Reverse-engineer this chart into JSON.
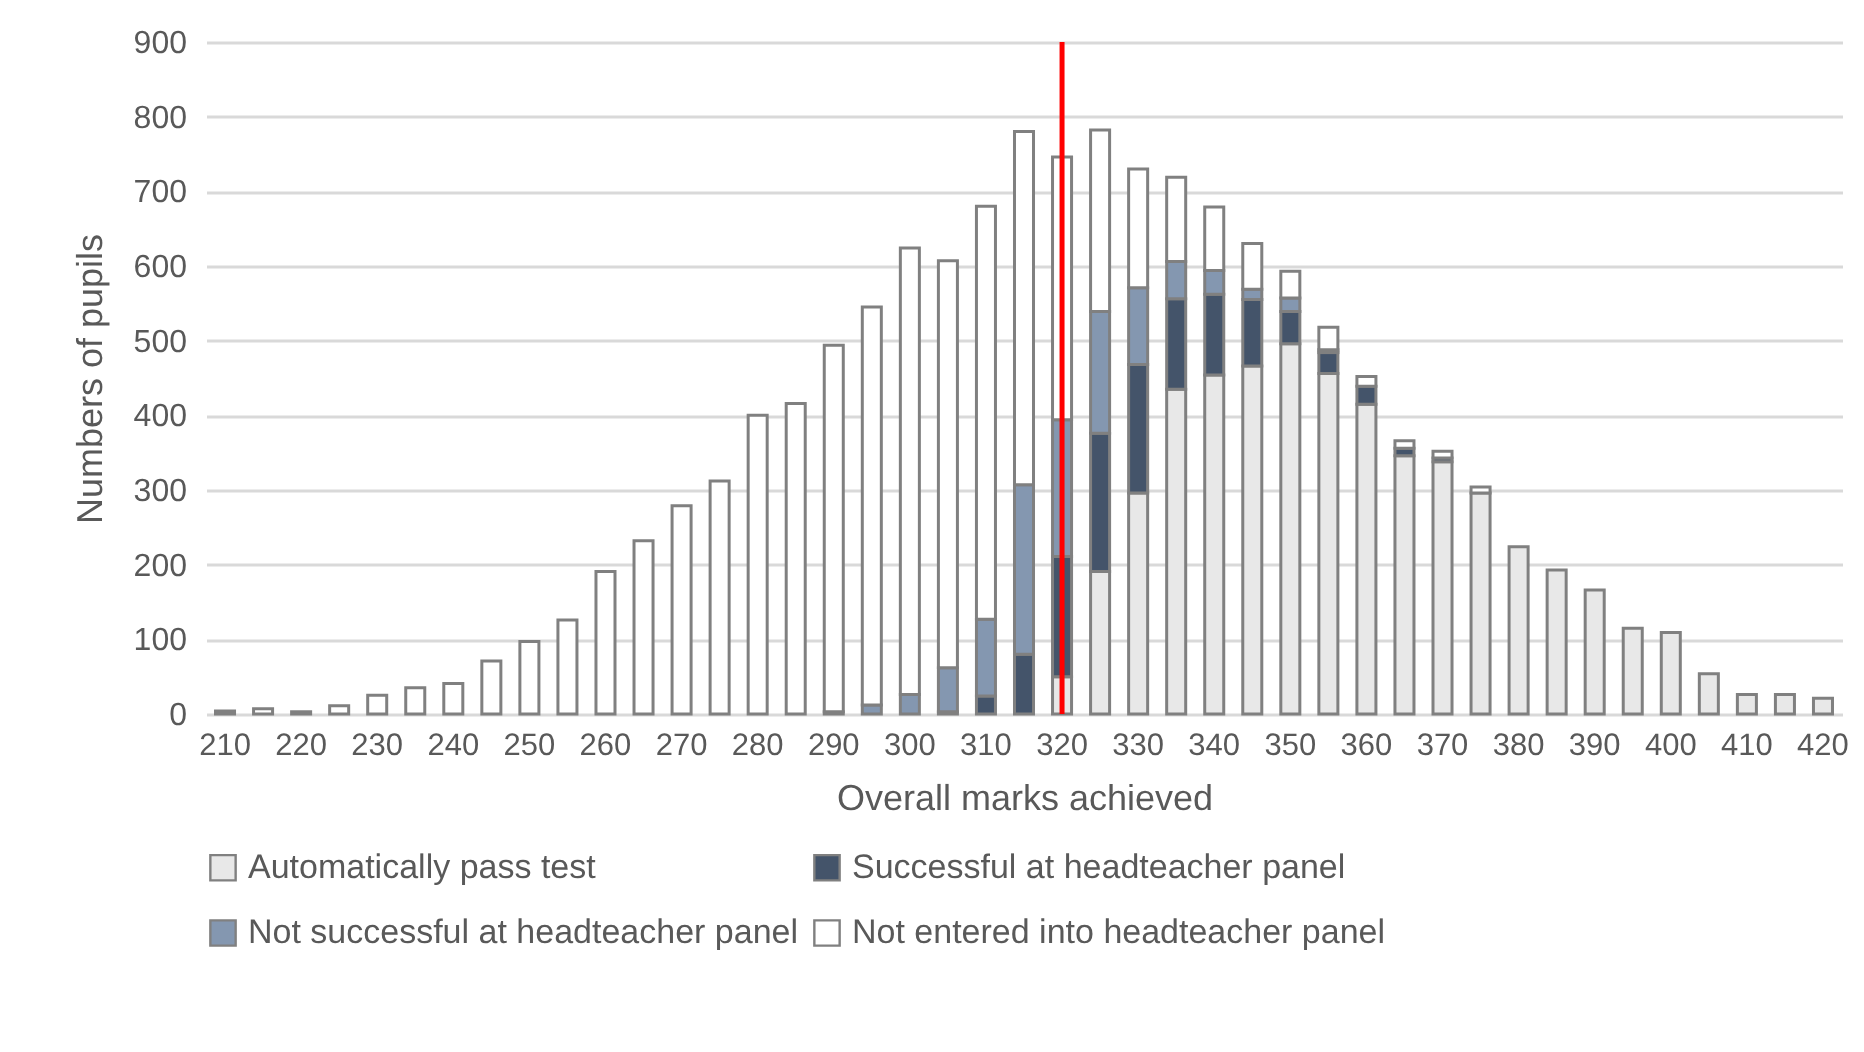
{
  "chart_data": {
    "type": "bar",
    "stacked": true,
    "xlabel": "Overall marks achieved",
    "ylabel": "Numbers of pupils",
    "categories": [
      "210",
      null,
      "220",
      null,
      "230",
      null,
      "240",
      null,
      "250",
      null,
      "260",
      null,
      "270",
      null,
      "280",
      null,
      "290",
      null,
      "300",
      null,
      "310",
      null,
      "320",
      null,
      "330",
      null,
      "340",
      null,
      "350",
      null,
      "360",
      null,
      "370",
      null,
      "380",
      null,
      "390",
      null,
      "400",
      null,
      "410",
      null,
      "420"
    ],
    "series": [
      {
        "name": "Automatically pass test",
        "color": "#e8e8e8",
        "values": [
          0,
          0,
          0,
          0,
          0,
          0,
          0,
          0,
          0,
          0,
          0,
          0,
          0,
          0,
          0,
          0,
          0,
          0,
          0,
          0,
          0,
          0,
          50,
          191,
          296,
          435,
          454,
          466,
          496,
          456,
          415,
          346,
          338,
          296,
          224,
          193,
          166,
          115,
          109,
          54,
          26,
          26,
          21
        ]
      },
      {
        "name": "Successful at headteacher panel",
        "color": "#44546a",
        "values": [
          0,
          0,
          0,
          0,
          0,
          0,
          0,
          0,
          0,
          0,
          0,
          0,
          0,
          0,
          0,
          0,
          0,
          0,
          0,
          3,
          24,
          80,
          161,
          185,
          172,
          121,
          108,
          89,
          43,
          28,
          24,
          10,
          5,
          0,
          0,
          0,
          0,
          0,
          0,
          0,
          0,
          0,
          0
        ]
      },
      {
        "name": "Not successful at headteacher panel",
        "color": "#8497b0",
        "values": [
          0,
          0,
          0,
          0,
          0,
          0,
          0,
          0,
          0,
          0,
          0,
          0,
          0,
          0,
          0,
          0,
          3,
          12,
          26,
          59,
          103,
          227,
          183,
          163,
          103,
          50,
          32,
          14,
          18,
          4,
          null,
          0,
          0,
          0,
          0,
          0,
          0,
          0,
          0,
          0,
          0,
          0,
          0
        ]
      },
      {
        "name": "Not entered into headteacher panel",
        "color": "#ffffff",
        "values": [
          4,
          7,
          3,
          11,
          25,
          35,
          41,
          71,
          97,
          126,
          191,
          232,
          279,
          312,
          400,
          416,
          491,
          533,
          598,
          545,
          553,
          473,
          352,
          243,
          159,
          113,
          85,
          61,
          36,
          30,
          13,
          10,
          9,
          8,
          0,
          0,
          0,
          0,
          0,
          0,
          0,
          0,
          0
        ]
      }
    ],
    "ylim": [
      0,
      900
    ],
    "yticks": [
      0,
      100,
      200,
      300,
      400,
      500,
      600,
      700,
      800,
      900
    ],
    "grid": "y",
    "legend": "bottom",
    "ref_lines": [
      {
        "axis": "x",
        "value": "320",
        "color": "#ff0000"
      }
    ]
  }
}
